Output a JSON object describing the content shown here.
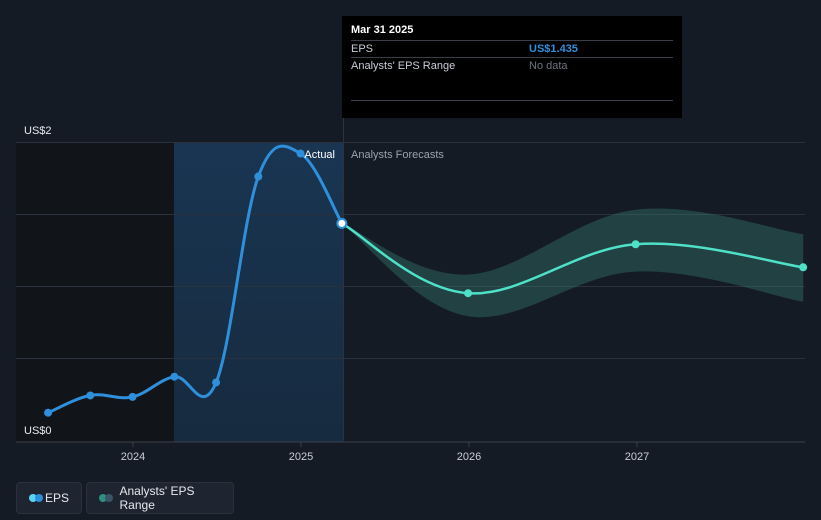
{
  "chart_data": {
    "type": "line",
    "y_axis": {
      "ticks": [
        "US$0",
        "US$2"
      ],
      "ylim": [
        0,
        2
      ]
    },
    "x_axis": {
      "ticks": [
        "2024",
        "2025",
        "2026",
        "2027"
      ]
    },
    "labels": {
      "actual": "Actual",
      "forecast": "Analysts Forecasts"
    },
    "series": [
      {
        "name": "EPS",
        "color": "#2f8fdb",
        "points": [
          {
            "x": "2023-06-30",
            "y": 0.12
          },
          {
            "x": "2023-09-30",
            "y": 0.24
          },
          {
            "x": "2023-12-31",
            "y": 0.23
          },
          {
            "x": "2024-03-31",
            "y": 0.37
          },
          {
            "x": "2024-06-30",
            "y": 0.33
          },
          {
            "x": "2024-09-30",
            "y": 1.76
          },
          {
            "x": "2024-12-31",
            "y": 1.92
          },
          {
            "x": "2025-03-31",
            "y": 1.435
          }
        ]
      },
      {
        "name": "Analysts' EPS Range",
        "color": "#4fe0c8",
        "points": [
          {
            "x": "2025-03-31",
            "y": 1.435
          },
          {
            "x": "2025-12-31",
            "y": 0.95
          },
          {
            "x": "2026-12-31",
            "y": 1.29
          },
          {
            "x": "2027-12-31",
            "y": 1.13
          }
        ],
        "range_high": [
          1.435,
          1.08,
          1.53,
          1.36
        ],
        "range_low": [
          1.435,
          0.79,
          1.1,
          0.89
        ]
      }
    ],
    "legend_position": "bottom-left"
  },
  "tooltip": {
    "date": "Mar 31 2025",
    "rows": [
      {
        "label": "EPS",
        "value": "US$1.435"
      },
      {
        "label": "Analysts' EPS Range",
        "value": "No data"
      }
    ]
  },
  "legend": {
    "eps_label": "EPS",
    "range_label": "Analysts' EPS Range"
  }
}
